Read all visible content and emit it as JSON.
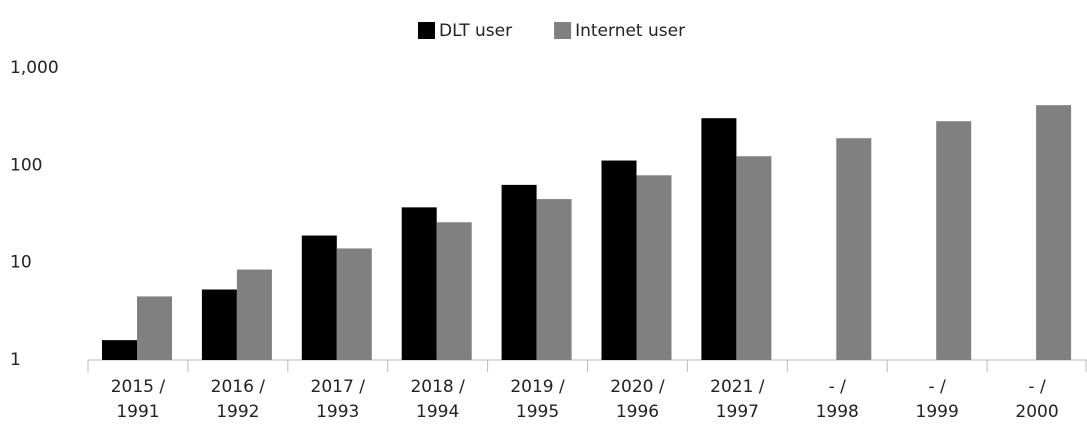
{
  "chart_data": {
    "type": "bar",
    "log_scale": true,
    "grid": false,
    "legend": "top",
    "categories": [
      [
        "2015 /",
        "1991"
      ],
      [
        "2016 /",
        "1992"
      ],
      [
        "2017 /",
        "1993"
      ],
      [
        "2018 /",
        "1994"
      ],
      [
        "2019 /",
        "1995"
      ],
      [
        "2020 /",
        "1996"
      ],
      [
        "2021 /",
        "1997"
      ],
      [
        "-     /",
        "1998"
      ],
      [
        "-     /",
        "1999"
      ],
      [
        "-     /",
        "2000"
      ]
    ],
    "series": [
      {
        "name": "DLT user",
        "color": "#000000",
        "values": [
          1.6,
          5.3,
          19,
          37,
          63,
          112,
          305,
          null,
          null,
          null
        ]
      },
      {
        "name": "Internet user",
        "color": "#808080",
        "values": [
          4.5,
          8.5,
          14,
          26,
          45,
          79,
          124,
          190,
          284,
          415
        ]
      }
    ],
    "ylim": [
      1,
      1000
    ],
    "yticks": [
      1,
      10,
      100,
      {
        "value": 1000,
        "label": "1,000"
      }
    ]
  }
}
